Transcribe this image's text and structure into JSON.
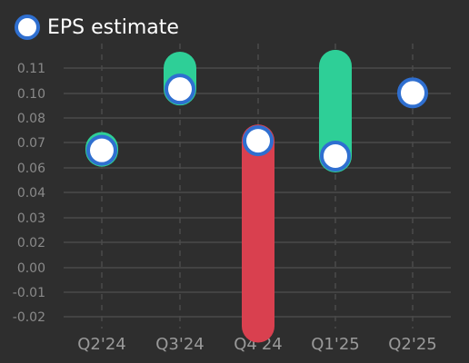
{
  "legend": {
    "label": "EPS estimate"
  },
  "colors": {
    "background": "#2e2e2e",
    "beat": "#2ecf97",
    "miss": "#d9404f",
    "marker_fill": "#ffffff",
    "marker_border": "#2f6fd0",
    "grid": "#4a4a4a",
    "tick_text": "#8a8a8a",
    "category_text": "#9a9a9a"
  },
  "chart_data": {
    "type": "scatter",
    "categories": [
      "Q2'24",
      "Q3'24",
      "Q4'24",
      "Q1'25",
      "Q2'25"
    ],
    "series": [
      {
        "name": "EPS estimate",
        "values": [
          0.067,
          0.099,
          0.072,
          0.064,
          0.097
        ]
      },
      {
        "values": [
          0.068,
          0.11,
          -0.025,
          0.111,
          null
        ]
      }
    ],
    "yticks": [
      "0.11",
      "0.10",
      "0.08",
      "0.07",
      "0.06",
      "0.04",
      "0.03",
      "0.02",
      "0.00",
      "-0.01",
      "-0.02"
    ],
    "ylim": [
      -0.025,
      0.115
    ],
    "grid": true,
    "legend_position": "top-left"
  }
}
